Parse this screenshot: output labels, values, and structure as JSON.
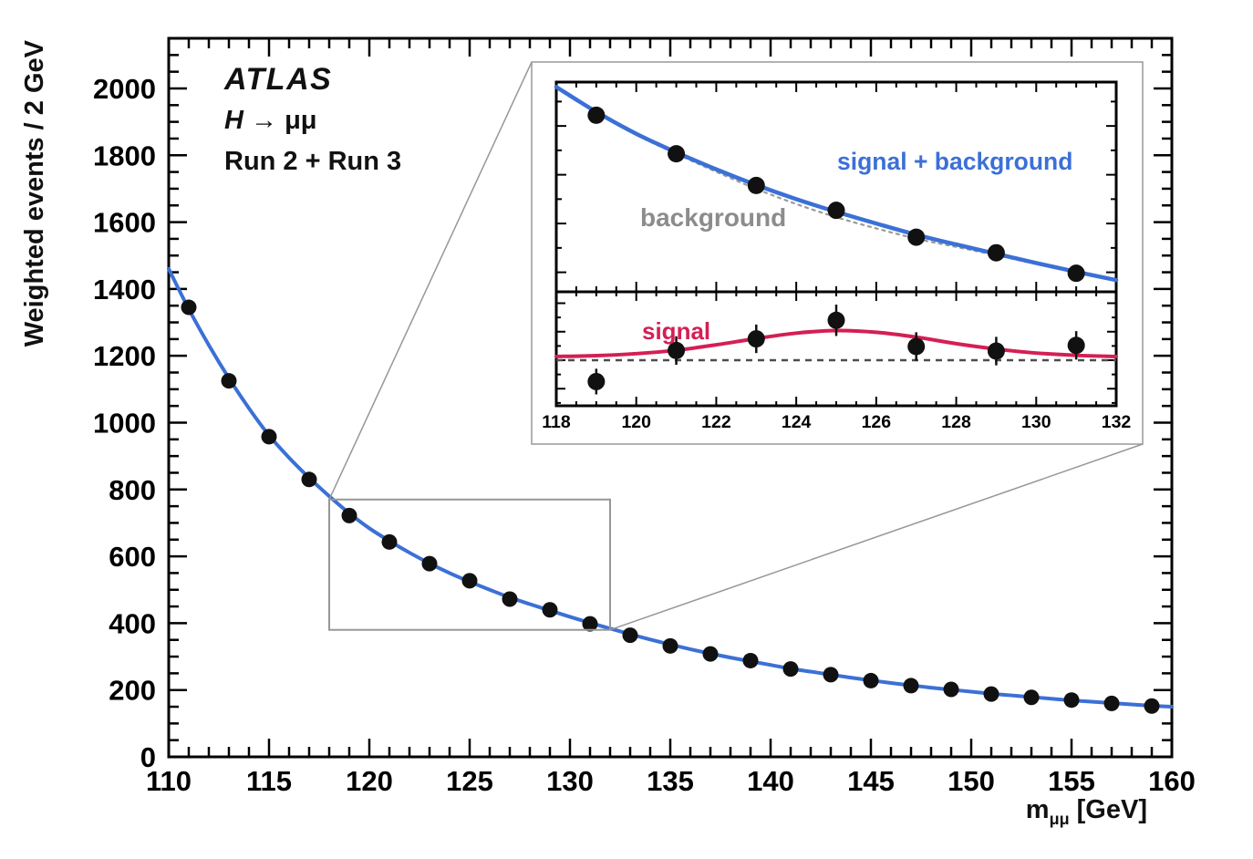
{
  "page": {
    "background": "#ffffff"
  },
  "annotations": {
    "experiment": "ATLAS",
    "process_h": "H",
    "process_rest": " → μμ",
    "dataset": "Run 2 + Run 3"
  },
  "labels": {
    "y_axis": "Weighted events / 2 GeV",
    "x_axis_main": "m",
    "x_axis_sub": "μμ",
    "x_axis_unit": " [GeV]",
    "signal_plus_background": "signal + background",
    "background": "background",
    "signal": "signal"
  },
  "colors": {
    "fit_blue": "#3b70d6",
    "signal_red": "#d41f54",
    "background_gray": "#8c8c8c",
    "dashed_background_gray": "#9a9a9a",
    "zero_line_gray": "#4d4d4d",
    "marker_black": "#111111",
    "frame_black": "#000000",
    "connector_gray": "#979797"
  },
  "chart_data": [
    {
      "id": "main",
      "type": "line+scatter",
      "title": "ATLAS  H → μμ  Run 2 + Run 3",
      "xlabel": "m_μμ [GeV]",
      "ylabel": "Weighted events / 2 GeV",
      "xlim": [
        110,
        160
      ],
      "ylim": [
        0,
        2150
      ],
      "x_major_ticks": [
        110,
        115,
        120,
        125,
        130,
        135,
        140,
        145,
        150,
        155,
        160
      ],
      "y_major_ticks": [
        0,
        200,
        400,
        600,
        800,
        1000,
        1200,
        1400,
        1600,
        1800,
        2000
      ],
      "grid": false,
      "series": [
        {
          "name": "signal plus background fit",
          "type": "line",
          "color": "#3b70d6",
          "width": 4,
          "x": [
            110,
            111,
            112,
            113,
            114,
            115,
            116,
            117,
            118,
            119,
            120,
            121,
            122,
            123,
            124,
            125,
            126,
            127,
            128,
            129,
            130,
            131,
            132,
            133,
            134,
            135,
            136,
            137,
            138,
            139,
            140,
            141,
            142,
            143,
            144,
            145,
            146,
            147,
            148,
            149,
            150,
            151,
            152,
            153,
            154,
            155,
            156,
            157,
            158,
            159,
            160
          ],
          "y": [
            1460,
            1340,
            1232,
            1133,
            1043,
            962,
            895,
            835,
            780,
            729,
            684,
            646,
            611,
            579,
            550,
            524,
            500,
            477,
            457,
            438,
            419,
            401,
            384,
            367,
            351,
            336,
            322,
            309,
            297,
            286,
            275,
            264,
            255,
            246,
            237,
            229,
            221,
            214,
            207,
            201,
            195,
            189,
            184,
            179,
            174,
            169,
            165,
            161,
            157,
            153,
            150
          ]
        },
        {
          "name": "data",
          "type": "scatter",
          "color": "#111111",
          "r": 8.5,
          "err": 7,
          "x": [
            111,
            113,
            115,
            117,
            119,
            121,
            123,
            125,
            127,
            129,
            131,
            133,
            135,
            137,
            139,
            141,
            143,
            145,
            147,
            149,
            151,
            153,
            155,
            157,
            159
          ],
          "y": [
            1345,
            1125,
            958,
            830,
            722,
            643,
            578,
            527,
            472,
            440,
            398,
            364,
            332,
            308,
            288,
            263,
            246,
            228,
            213,
            202,
            188,
            178,
            170,
            160,
            152
          ]
        }
      ],
      "zoom_box": {
        "x": [
          118,
          132
        ],
        "y": [
          380,
          770
        ]
      }
    },
    {
      "id": "inset-top",
      "type": "line+scatter",
      "xlim": [
        118,
        132
      ],
      "ylim": [
        360,
        790
      ],
      "x_major_ticks": [
        118,
        120,
        122,
        124,
        126,
        128,
        130,
        132
      ],
      "y_major_ticks": [
        400,
        500,
        600,
        700
      ],
      "series": [
        {
          "name": "background fit",
          "type": "line",
          "color": "#9a9a9a",
          "width": 2.2,
          "dash": [
            3,
            5
          ],
          "x": [
            118,
            119,
            120,
            121,
            122,
            123,
            124,
            125,
            126,
            127,
            128,
            129,
            130,
            131,
            132
          ],
          "y": [
            780,
            728,
            682,
            643,
            606,
            571,
            540,
            513,
            490,
            469,
            452,
            435,
            417,
            400,
            384
          ]
        },
        {
          "name": "signal plus background fit",
          "type": "line",
          "color": "#3b70d6",
          "width": 4.5,
          "x": [
            118,
            119,
            120,
            121,
            122,
            123,
            124,
            125,
            126,
            127,
            128,
            129,
            130,
            131,
            132
          ],
          "y": [
            780,
            729,
            684,
            646,
            611,
            579,
            550,
            524,
            500,
            477,
            457,
            438,
            419,
            401,
            384
          ]
        },
        {
          "name": "data",
          "type": "scatter",
          "color": "#111111",
          "r": 9.5,
          "err": 9,
          "x": [
            119,
            121,
            123,
            125,
            127,
            129,
            131
          ],
          "y": [
            722,
            643,
            578,
            527,
            472,
            440,
            398
          ]
        }
      ]
    },
    {
      "id": "inset-bottom",
      "type": "line+scatter",
      "xlim": [
        118,
        132
      ],
      "ylim": [
        -16,
        24
      ],
      "x_major_ticks": [
        118,
        120,
        122,
        124,
        126,
        128,
        130,
        132
      ],
      "y_major_ticks": [
        -10,
        0,
        10,
        20
      ],
      "series": [
        {
          "name": "zero line",
          "type": "hline",
          "y": 0,
          "color": "#4d4d4d",
          "width": 2.5,
          "dash": [
            7,
            6
          ]
        },
        {
          "name": "signal fit",
          "type": "line",
          "color": "#d41f54",
          "width": 4,
          "x": [
            118,
            119,
            120,
            121,
            122,
            123,
            124,
            125,
            126,
            127,
            128,
            129,
            130,
            131,
            132
          ],
          "y": [
            1.3,
            1.6,
            2.3,
            3.5,
            5.4,
            7.6,
            9.5,
            10.4,
            9.8,
            8.1,
            5.8,
            3.9,
            2.5,
            1.7,
            1.3
          ]
        },
        {
          "name": "data minus background",
          "type": "scatter",
          "color": "#111111",
          "r": 9.5,
          "err": [
            4.5,
            5,
            5,
            5.5,
            5,
            5,
            5
          ],
          "x": [
            119,
            121,
            123,
            125,
            127,
            129,
            131
          ],
          "y": [
            -7.5,
            3.4,
            7.5,
            14,
            4.8,
            3.2,
            5.2
          ]
        }
      ]
    }
  ]
}
